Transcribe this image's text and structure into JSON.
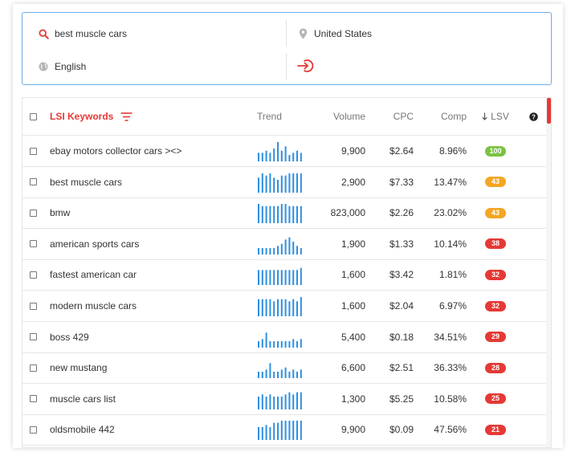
{
  "search": {
    "keyword": "best muscle cars",
    "location": "United States",
    "language": "English"
  },
  "table": {
    "headers": {
      "keyword": "LSI Keywords",
      "trend": "Trend",
      "volume": "Volume",
      "cpc": "CPC",
      "comp": "Comp",
      "lsv": "LSV"
    },
    "sort_icon": "arrow-down-icon",
    "filter_icon": "filter-lines-icon",
    "help_icon": "question-circle-icon",
    "colors": {
      "accent": "#e53935",
      "trend_bar": "#2e8fe0",
      "lsv_green": "#7cc242",
      "lsv_orange": "#f5a623",
      "lsv_red": "#e53935"
    },
    "rows": [
      {
        "keyword": "ebay motors collector cars ><>",
        "trend": [
          4,
          4,
          5,
          4,
          6,
          9,
          5,
          7,
          3,
          4,
          5,
          4
        ],
        "volume": "9,900",
        "cpc": "$2.64",
        "comp": "8.96%",
        "lsv": "100",
        "lsv_level": "green"
      },
      {
        "keyword": "best muscle cars",
        "trend": [
          7,
          9,
          8,
          9,
          7,
          6,
          8,
          8,
          9,
          9,
          9,
          9
        ],
        "volume": "2,900",
        "cpc": "$7.33",
        "comp": "13.47%",
        "lsv": "43",
        "lsv_level": "orange"
      },
      {
        "keyword": "bmw",
        "trend": [
          9,
          8,
          8,
          8,
          8,
          8,
          9,
          9,
          8,
          8,
          8,
          8
        ],
        "volume": "823,000",
        "cpc": "$2.26",
        "comp": "23.02%",
        "lsv": "43",
        "lsv_level": "orange"
      },
      {
        "keyword": "american sports cars",
        "trend": [
          3,
          3,
          3,
          3,
          3,
          4,
          5,
          7,
          8,
          6,
          4,
          3
        ],
        "volume": "1,900",
        "cpc": "$1.33",
        "comp": "10.14%",
        "lsv": "38",
        "lsv_level": "red"
      },
      {
        "keyword": "fastest american car",
        "trend": [
          7,
          7,
          7,
          7,
          7,
          7,
          7,
          7,
          7,
          7,
          7,
          8
        ],
        "volume": "1,600",
        "cpc": "$3.42",
        "comp": "1.81%",
        "lsv": "32",
        "lsv_level": "red"
      },
      {
        "keyword": "modern muscle cars",
        "trend": [
          8,
          8,
          8,
          8,
          7,
          8,
          8,
          8,
          7,
          8,
          7,
          9
        ],
        "volume": "1,600",
        "cpc": "$2.04",
        "comp": "6.97%",
        "lsv": "32",
        "lsv_level": "red"
      },
      {
        "keyword": "boss 429",
        "trend": [
          3,
          4,
          7,
          3,
          3,
          3,
          3,
          3,
          3,
          4,
          3,
          4
        ],
        "volume": "5,400",
        "cpc": "$0.18",
        "comp": "34.51%",
        "lsv": "29",
        "lsv_level": "red"
      },
      {
        "keyword": "new mustang",
        "trend": [
          3,
          3,
          4,
          7,
          3,
          3,
          4,
          5,
          3,
          4,
          3,
          4
        ],
        "volume": "6,600",
        "cpc": "$2.51",
        "comp": "36.33%",
        "lsv": "28",
        "lsv_level": "red"
      },
      {
        "keyword": "muscle cars list",
        "trend": [
          6,
          7,
          6,
          7,
          6,
          6,
          6,
          7,
          8,
          7,
          8,
          8
        ],
        "volume": "1,300",
        "cpc": "$5.25",
        "comp": "10.58%",
        "lsv": "25",
        "lsv_level": "red"
      },
      {
        "keyword": "oldsmobile 442",
        "trend": [
          6,
          6,
          7,
          6,
          8,
          8,
          9,
          9,
          9,
          9,
          9,
          9
        ],
        "volume": "9,900",
        "cpc": "$0.09",
        "comp": "47.56%",
        "lsv": "21",
        "lsv_level": "red"
      }
    ]
  }
}
